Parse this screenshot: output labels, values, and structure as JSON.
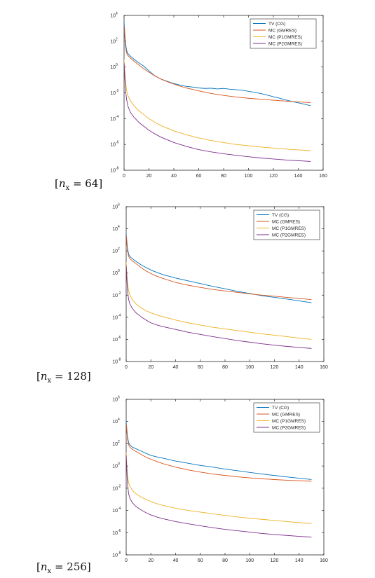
{
  "chart_data": [
    {
      "type": "line",
      "caption": {
        "var": "n",
        "sub": "x",
        "rest": " = 64]"
      },
      "x_ticks": [
        0,
        20,
        40,
        60,
        80,
        100,
        120,
        140,
        160
      ],
      "y_tick_exponents": [
        -8,
        -6,
        -4,
        -2,
        0,
        2,
        4
      ],
      "xlim": [
        0,
        160
      ],
      "ylim_log10": [
        -8,
        4
      ],
      "log_y": true,
      "grid": false,
      "legend_position": "top-right",
      "series": [
        {
          "name": "TV (CG)",
          "color": "#0072BD",
          "x": [
            0,
            1,
            2,
            3,
            5,
            8,
            12,
            16,
            20,
            25,
            30,
            35,
            40,
            45,
            50,
            55,
            60,
            65,
            70,
            75,
            80,
            85,
            90,
            95,
            100,
            105,
            110,
            115,
            120,
            125,
            130,
            135,
            140,
            145,
            150
          ],
          "log10_y": [
            3.5,
            2.0,
            1.3,
            1.05,
            0.85,
            0.6,
            0.32,
            0.05,
            -0.3,
            -0.7,
            -0.95,
            -1.12,
            -1.28,
            -1.4,
            -1.5,
            -1.55,
            -1.62,
            -1.66,
            -1.64,
            -1.7,
            -1.66,
            -1.72,
            -1.76,
            -1.8,
            -1.88,
            -1.96,
            -2.06,
            -2.17,
            -2.3,
            -2.42,
            -2.55,
            -2.67,
            -2.78,
            -2.88,
            -3.0
          ]
        },
        {
          "name": "MC (GMRES)",
          "color": "#D95319",
          "x": [
            0,
            1,
            2,
            3,
            5,
            8,
            12,
            16,
            20,
            25,
            30,
            35,
            40,
            45,
            50,
            60,
            70,
            80,
            90,
            100,
            110,
            120,
            130,
            140,
            150
          ],
          "log10_y": [
            3.2,
            1.7,
            1.1,
            0.9,
            0.7,
            0.45,
            0.15,
            -0.15,
            -0.4,
            -0.7,
            -0.95,
            -1.15,
            -1.32,
            -1.48,
            -1.62,
            -1.85,
            -2.05,
            -2.2,
            -2.32,
            -2.42,
            -2.5,
            -2.57,
            -2.64,
            -2.7,
            -2.76
          ]
        },
        {
          "name": "MC (P1GMRES)",
          "color": "#EDB120",
          "x": [
            0,
            1,
            2,
            3,
            5,
            8,
            12,
            16,
            20,
            25,
            30,
            35,
            40,
            45,
            50,
            60,
            70,
            80,
            90,
            100,
            110,
            120,
            130,
            140,
            150
          ],
          "log10_y": [
            0.6,
            -0.9,
            -1.8,
            -2.2,
            -2.6,
            -3.0,
            -3.4,
            -3.7,
            -4.0,
            -4.3,
            -4.55,
            -4.75,
            -4.95,
            -5.1,
            -5.25,
            -5.5,
            -5.7,
            -5.85,
            -6.0,
            -6.1,
            -6.2,
            -6.28,
            -6.36,
            -6.42,
            -6.48
          ]
        },
        {
          "name": "MC (P2GMRES)",
          "color": "#7E2F8E",
          "x": [
            0,
            1,
            2,
            3,
            5,
            8,
            12,
            16,
            20,
            25,
            30,
            35,
            40,
            45,
            50,
            60,
            70,
            80,
            90,
            100,
            110,
            120,
            130,
            140,
            150
          ],
          "log10_y": [
            0.3,
            -1.6,
            -2.5,
            -3.0,
            -3.5,
            -3.9,
            -4.3,
            -4.6,
            -4.9,
            -5.2,
            -5.45,
            -5.65,
            -5.85,
            -6.0,
            -6.15,
            -6.4,
            -6.58,
            -6.72,
            -6.84,
            -6.95,
            -7.05,
            -7.13,
            -7.2,
            -7.26,
            -7.32
          ]
        }
      ]
    },
    {
      "type": "line",
      "caption": {
        "var": "n",
        "sub": "x",
        "rest": " = 128]"
      },
      "x_ticks": [
        0,
        20,
        40,
        60,
        80,
        100,
        120,
        140,
        160
      ],
      "y_tick_exponents": [
        -8,
        -6,
        -4,
        -2,
        0,
        2,
        4,
        6
      ],
      "xlim": [
        0,
        160
      ],
      "ylim_log10": [
        -8,
        6
      ],
      "log_y": true,
      "grid": false,
      "legend_position": "top-right",
      "series": [
        {
          "name": "TV (CG)",
          "color": "#0072BD",
          "x": [
            0,
            1,
            2,
            3,
            5,
            8,
            12,
            16,
            20,
            25,
            30,
            40,
            50,
            60,
            70,
            80,
            90,
            100,
            110,
            120,
            130,
            140,
            150
          ],
          "log10_y": [
            3.6,
            2.3,
            1.7,
            1.5,
            1.3,
            1.05,
            0.75,
            0.5,
            0.28,
            0.05,
            -0.15,
            -0.45,
            -0.7,
            -0.95,
            -1.2,
            -1.42,
            -1.65,
            -1.85,
            -2.05,
            -2.2,
            -2.35,
            -2.52,
            -2.68
          ]
        },
        {
          "name": "MC (GMRES)",
          "color": "#D95319",
          "x": [
            0,
            1,
            2,
            3,
            5,
            8,
            12,
            16,
            20,
            25,
            30,
            40,
            50,
            60,
            70,
            80,
            90,
            100,
            110,
            120,
            130,
            140,
            150
          ],
          "log10_y": [
            3.4,
            2.1,
            1.5,
            1.3,
            1.1,
            0.85,
            0.5,
            0.2,
            -0.05,
            -0.3,
            -0.5,
            -0.85,
            -1.1,
            -1.3,
            -1.48,
            -1.62,
            -1.75,
            -1.88,
            -2.0,
            -2.1,
            -2.2,
            -2.3,
            -2.4
          ]
        },
        {
          "name": "MC (P1GMRES)",
          "color": "#EDB120",
          "x": [
            0,
            1,
            2,
            3,
            5,
            8,
            12,
            16,
            20,
            25,
            30,
            40,
            50,
            60,
            70,
            80,
            90,
            100,
            110,
            120,
            130,
            140,
            150
          ],
          "log10_y": [
            1.0,
            -0.8,
            -1.6,
            -2.0,
            -2.4,
            -2.8,
            -3.15,
            -3.4,
            -3.6,
            -3.8,
            -3.95,
            -4.25,
            -4.5,
            -4.7,
            -4.9,
            -5.05,
            -5.2,
            -5.35,
            -5.5,
            -5.62,
            -5.75,
            -5.88,
            -6.0
          ]
        },
        {
          "name": "MC (P2GMRES)",
          "color": "#7E2F8E",
          "x": [
            0,
            1,
            2,
            3,
            5,
            8,
            12,
            16,
            20,
            25,
            30,
            40,
            50,
            60,
            70,
            80,
            90,
            100,
            110,
            120,
            130,
            140,
            150
          ],
          "log10_y": [
            0.7,
            -1.5,
            -2.4,
            -2.8,
            -3.2,
            -3.6,
            -3.95,
            -4.25,
            -4.5,
            -4.7,
            -4.85,
            -5.1,
            -5.35,
            -5.55,
            -5.75,
            -5.92,
            -6.1,
            -6.25,
            -6.4,
            -6.52,
            -6.63,
            -6.73,
            -6.82
          ]
        }
      ]
    },
    {
      "type": "line",
      "caption": {
        "var": "n",
        "sub": "x",
        "rest": " = 256]"
      },
      "x_ticks": [
        0,
        20,
        40,
        60,
        80,
        100,
        120,
        140,
        160
      ],
      "y_tick_exponents": [
        -8,
        -6,
        -4,
        -2,
        0,
        2,
        4,
        6
      ],
      "xlim": [
        0,
        160
      ],
      "ylim_log10": [
        -8,
        6
      ],
      "log_y": true,
      "grid": false,
      "legend_position": "top-right",
      "series": [
        {
          "name": "TV (CG)",
          "color": "#0072BD",
          "x": [
            0,
            1,
            2,
            3,
            5,
            8,
            12,
            16,
            20,
            25,
            30,
            40,
            50,
            60,
            70,
            80,
            90,
            100,
            110,
            120,
            130,
            140,
            150
          ],
          "log10_y": [
            4.0,
            2.7,
            2.1,
            1.9,
            1.7,
            1.55,
            1.35,
            1.15,
            0.95,
            0.82,
            0.7,
            0.45,
            0.25,
            0.05,
            -0.1,
            -0.28,
            -0.42,
            -0.58,
            -0.72,
            -0.85,
            -0.98,
            -1.1,
            -1.22
          ]
        },
        {
          "name": "MC (GMRES)",
          "color": "#D95319",
          "x": [
            0,
            1,
            2,
            3,
            5,
            8,
            12,
            16,
            20,
            25,
            30,
            40,
            50,
            60,
            70,
            80,
            90,
            100,
            110,
            120,
            130,
            140,
            150
          ],
          "log10_y": [
            3.8,
            2.5,
            1.9,
            1.7,
            1.5,
            1.3,
            1.05,
            0.8,
            0.6,
            0.4,
            0.2,
            -0.1,
            -0.35,
            -0.55,
            -0.72,
            -0.85,
            -0.97,
            -1.07,
            -1.15,
            -1.22,
            -1.28,
            -1.32,
            -1.37
          ]
        },
        {
          "name": "MC (P1GMRES)",
          "color": "#EDB120",
          "x": [
            0,
            1,
            2,
            3,
            5,
            8,
            12,
            16,
            20,
            25,
            30,
            40,
            50,
            60,
            70,
            80,
            90,
            100,
            110,
            120,
            130,
            140,
            150
          ],
          "log10_y": [
            1.2,
            -0.8,
            -1.5,
            -1.8,
            -2.2,
            -2.5,
            -2.8,
            -3.0,
            -3.2,
            -3.4,
            -3.55,
            -3.8,
            -4.0,
            -4.15,
            -4.3,
            -4.45,
            -4.58,
            -4.7,
            -4.8,
            -4.9,
            -5.0,
            -5.1,
            -5.18
          ]
        },
        {
          "name": "MC (P2GMRES)",
          "color": "#7E2F8E",
          "x": [
            0,
            1,
            2,
            3,
            5,
            8,
            12,
            16,
            20,
            25,
            30,
            40,
            50,
            60,
            70,
            80,
            90,
            100,
            110,
            120,
            130,
            140,
            150
          ],
          "log10_y": [
            1.0,
            -1.5,
            -2.5,
            -2.9,
            -3.3,
            -3.65,
            -3.95,
            -4.2,
            -4.4,
            -4.6,
            -4.75,
            -5.0,
            -5.2,
            -5.38,
            -5.55,
            -5.7,
            -5.83,
            -5.95,
            -6.07,
            -6.17,
            -6.25,
            -6.33,
            -6.4
          ]
        }
      ]
    }
  ]
}
